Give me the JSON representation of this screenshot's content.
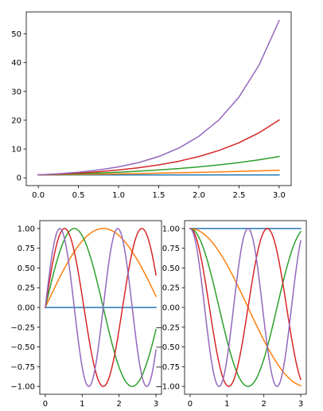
{
  "chart_data": [
    {
      "type": "line",
      "title": "",
      "xlabel": "",
      "ylabel": "",
      "xlim": [
        -0.15,
        3.15
      ],
      "ylim": [
        -2.7,
        57.6
      ],
      "x_ticks": [
        0.0,
        0.5,
        1.0,
        1.5,
        2.0,
        2.5,
        3.0
      ],
      "x_tick_labels": [
        "0.0",
        "0.5",
        "1.0",
        "1.5",
        "2.0",
        "2.5",
        "3.0"
      ],
      "y_ticks": [
        0,
        10,
        20,
        30,
        40,
        50
      ],
      "y_tick_labels": [
        "0",
        "10",
        "20",
        "30",
        "40",
        "50"
      ],
      "grid": false,
      "x": [
        0.0,
        0.25,
        0.5,
        0.75,
        1.0,
        1.25,
        1.5,
        1.75,
        2.0,
        2.25,
        2.5,
        2.75,
        3.0
      ],
      "series": [
        {
          "color": "#1f77b4",
          "values": [
            1.0,
            1.0,
            1.0,
            1.0,
            1.0,
            1.0,
            1.0,
            1.0,
            1.0,
            1.0,
            1.0,
            1.0,
            1.0
          ]
        },
        {
          "color": "#ff7f0e",
          "values": [
            1.0,
            1.08,
            1.17,
            1.27,
            1.38,
            1.49,
            1.62,
            1.75,
            1.9,
            2.05,
            2.23,
            2.41,
            2.61
          ]
        },
        {
          "color": "#2ca02c",
          "values": [
            1.0,
            1.18,
            1.4,
            1.65,
            1.95,
            2.3,
            2.72,
            3.21,
            3.79,
            4.48,
            5.29,
            6.25,
            7.39
          ]
        },
        {
          "color": "#d62728",
          "values": [
            1.0,
            1.28,
            1.65,
            2.12,
            2.72,
            3.49,
            4.48,
            5.75,
            7.39,
            9.49,
            12.18,
            15.64,
            20.09
          ]
        },
        {
          "color": "#9467bd",
          "values": [
            1.0,
            1.4,
            1.95,
            2.72,
            3.79,
            5.29,
            7.39,
            10.32,
            14.41,
            20.1,
            28.05,
            39.14,
            54.6
          ]
        }
      ]
    },
    {
      "type": "line",
      "title": "",
      "xlabel": "",
      "ylabel": "",
      "xlim": [
        -0.15,
        3.15
      ],
      "ylim": [
        -1.1,
        1.1
      ],
      "x_ticks": [
        0,
        1,
        2,
        3
      ],
      "x_tick_labels": [
        "0",
        "1",
        "2",
        "3"
      ],
      "y_ticks": [
        -1.0,
        -0.75,
        -0.5,
        -0.25,
        0.0,
        0.25,
        0.5,
        0.75,
        1.0
      ],
      "y_tick_labels": [
        "−1.00",
        "−0.75",
        "−0.50",
        "−0.25",
        "0.00",
        "0.25",
        "0.50",
        "0.75",
        "1.00"
      ],
      "grid": false,
      "series": [
        {
          "color": "#1f77b4",
          "function": "sin",
          "frequency": 0
        },
        {
          "color": "#ff7f0e",
          "function": "sin",
          "frequency": 1
        },
        {
          "color": "#2ca02c",
          "function": "sin",
          "frequency": 2
        },
        {
          "color": "#d62728",
          "function": "sin",
          "frequency": 3
        },
        {
          "color": "#9467bd",
          "function": "sin",
          "frequency": 4
        }
      ]
    },
    {
      "type": "line",
      "title": "",
      "xlabel": "",
      "ylabel": "",
      "xlim": [
        -0.15,
        3.15
      ],
      "ylim": [
        -1.1,
        1.1
      ],
      "x_ticks": [
        0,
        1,
        2,
        3
      ],
      "x_tick_labels": [
        "0",
        "1",
        "2",
        "3"
      ],
      "y_ticks": [
        -1.0,
        -0.75,
        -0.5,
        -0.25,
        0.0,
        0.25,
        0.5,
        0.75,
        1.0
      ],
      "y_tick_labels": [
        "−1.00",
        "−0.75",
        "−0.50",
        "−0.25",
        "0.00",
        "0.25",
        "0.50",
        "0.75",
        "1.00"
      ],
      "grid": false,
      "series": [
        {
          "color": "#1f77b4",
          "function": "cos",
          "frequency": 0
        },
        {
          "color": "#ff7f0e",
          "function": "cos",
          "frequency": 1
        },
        {
          "color": "#2ca02c",
          "function": "cos",
          "frequency": 2
        },
        {
          "color": "#d62728",
          "function": "cos",
          "frequency": 3
        },
        {
          "color": "#9467bd",
          "function": "cos",
          "frequency": 4
        }
      ]
    }
  ]
}
